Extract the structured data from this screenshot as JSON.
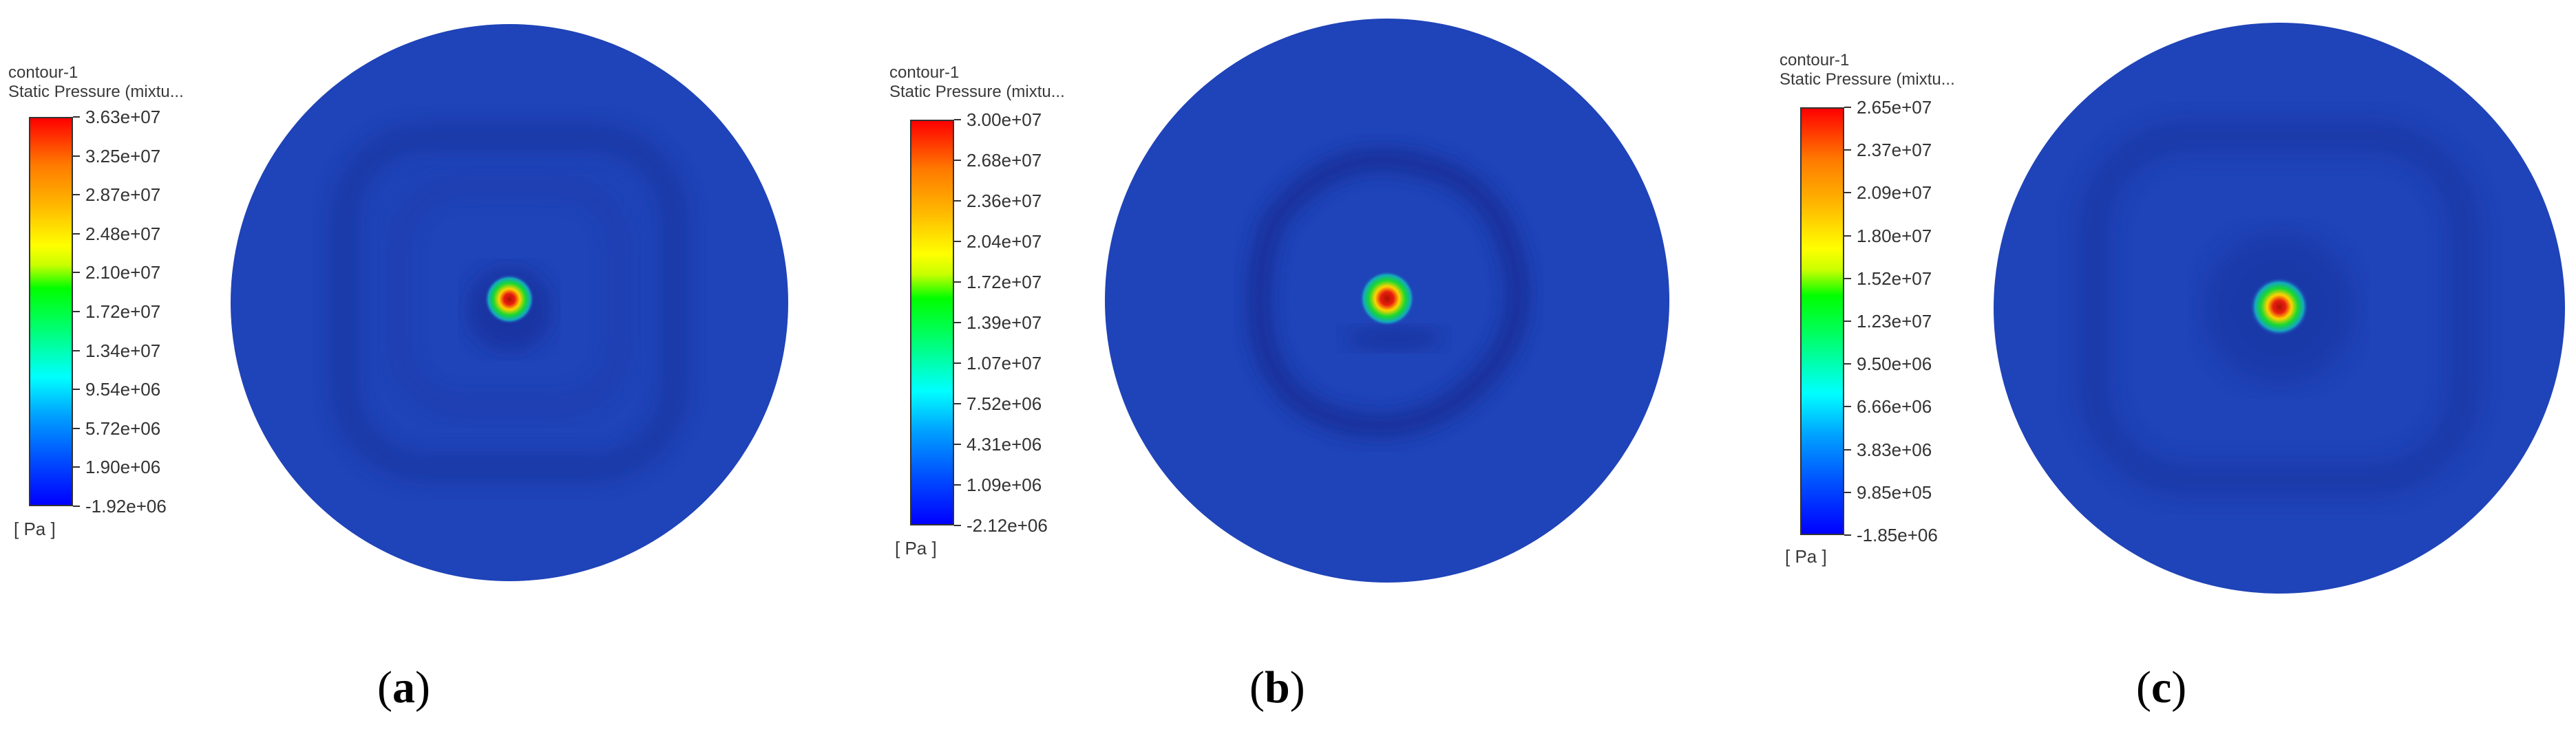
{
  "panels": [
    {
      "id": "a",
      "caption_letter": "a",
      "legend": {
        "title_line1": "contour-1",
        "title_line2": "Static Pressure (mixtu...",
        "unit": "[ Pa ]",
        "ticks": [
          "3.63e+07",
          "3.25e+07",
          "2.87e+07",
          "2.48e+07",
          "2.10e+07",
          "1.72e+07",
          "1.34e+07",
          "9.54e+06",
          "5.72e+06",
          "1.90e+06",
          "-1.92e+06"
        ]
      }
    },
    {
      "id": "b",
      "caption_letter": "b",
      "legend": {
        "title_line1": "contour-1",
        "title_line2": "Static Pressure (mixtu...",
        "unit": "[ Pa ]",
        "ticks": [
          "3.00e+07",
          "2.68e+07",
          "2.36e+07",
          "2.04e+07",
          "1.72e+07",
          "1.39e+07",
          "1.07e+07",
          "7.52e+06",
          "4.31e+06",
          "1.09e+06",
          "-2.12e+06"
        ]
      }
    },
    {
      "id": "c",
      "caption_letter": "c",
      "legend": {
        "title_line1": "contour-1",
        "title_line2": "Static Pressure (mixtu...",
        "unit": "[ Pa ]",
        "ticks": [
          "2.65e+07",
          "2.37e+07",
          "2.09e+07",
          "1.80e+07",
          "1.52e+07",
          "1.23e+07",
          "9.50e+06",
          "6.66e+06",
          "3.83e+06",
          "9.85e+05",
          "-1.85e+06"
        ]
      }
    }
  ],
  "colors": {
    "field_base": "#1f43b8",
    "field_dark": "#16309a",
    "peak_core": "#e81e10",
    "peak_mid": "#ffd400",
    "peak_outer": "#18d830"
  }
}
